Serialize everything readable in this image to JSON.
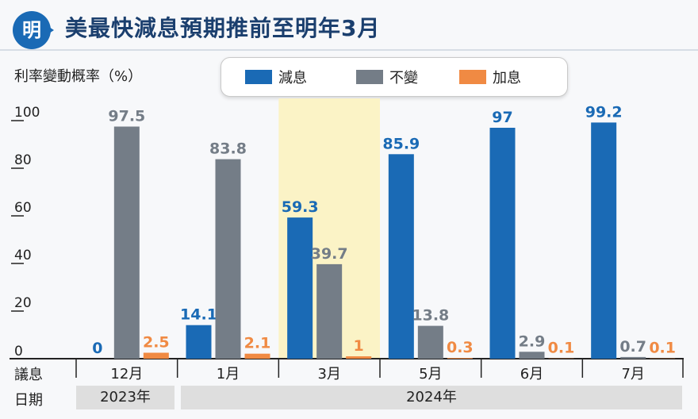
{
  "title": "美最快減息預期推前至明年3月",
  "logo_text": "明",
  "chart_data": {
    "type": "bar",
    "title": "美最快減息預期推前至明年3月",
    "ylabel": "利率變動概率（%）",
    "ylim": [
      0,
      100
    ],
    "yticks": [
      0,
      20,
      40,
      60,
      80,
      100
    ],
    "categories": [
      "12月",
      "1月",
      "3月",
      "5月",
      "6月",
      "7月"
    ],
    "highlighted_category": "3月",
    "series": [
      {
        "name": "減息",
        "color": "#1a6ab5",
        "values": [
          0,
          14.1,
          59.3,
          85.9,
          97,
          99.2
        ],
        "labels": [
          "0",
          "14.1",
          "59.3",
          "85.9",
          "97",
          "99.2"
        ]
      },
      {
        "name": "不變",
        "color": "#747d87",
        "values": [
          97.5,
          83.8,
          39.7,
          13.8,
          2.9,
          0.7
        ],
        "labels": [
          "97.5",
          "83.8",
          "39.7",
          "13.8",
          "2.9",
          "0.7"
        ]
      },
      {
        "name": "加息",
        "color": "#f08a43",
        "values": [
          2.5,
          2.1,
          1,
          0.3,
          0.1,
          0.1
        ],
        "labels": [
          "2.5",
          "2.1",
          "1",
          "0.3",
          "0.1",
          "0.1"
        ]
      }
    ],
    "legend": "top-center",
    "grid": false
  },
  "rows": {
    "meeting_label": "議息",
    "date_label": "日期",
    "years": [
      "2023年",
      "2024年"
    ]
  }
}
